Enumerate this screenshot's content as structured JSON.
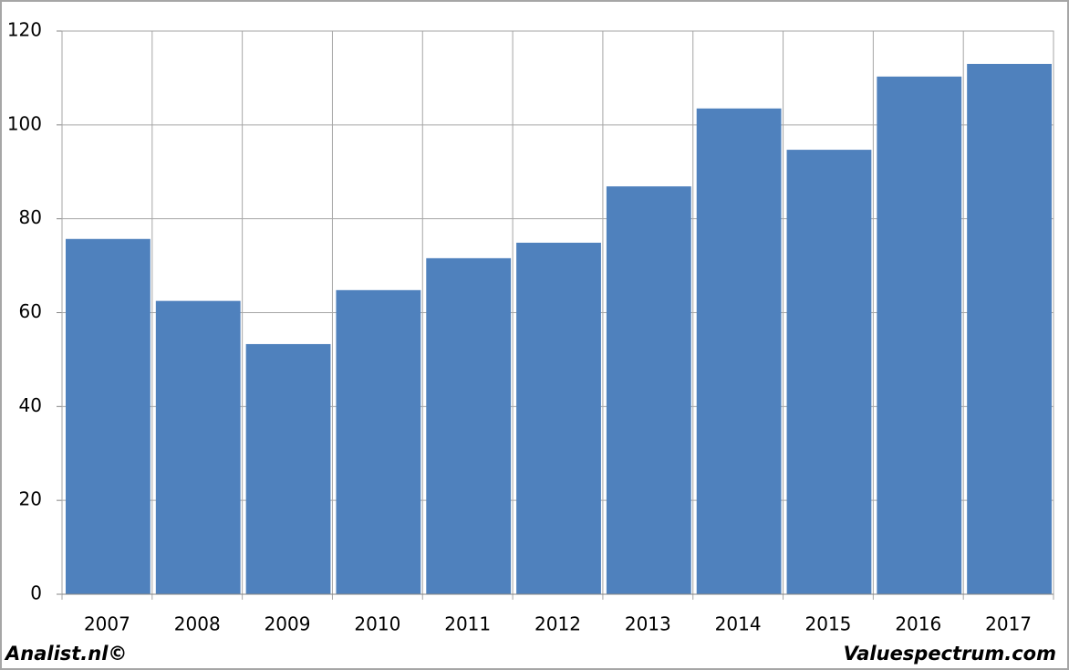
{
  "chart_data": {
    "type": "bar",
    "categories": [
      "2007",
      "2008",
      "2009",
      "2010",
      "2011",
      "2012",
      "2013",
      "2014",
      "2015",
      "2016",
      "2017"
    ],
    "values": [
      75.7,
      62.5,
      53.3,
      64.8,
      71.6,
      74.9,
      86.9,
      103.5,
      94.7,
      110.3,
      113
    ],
    "color": "#4f81bd",
    "ylim": [
      0,
      120
    ],
    "yticks": [
      0,
      20,
      40,
      60,
      80,
      100,
      120
    ],
    "grid": true,
    "source_left": "Analist.nl©",
    "source_right": "Valuespectrum.com"
  }
}
